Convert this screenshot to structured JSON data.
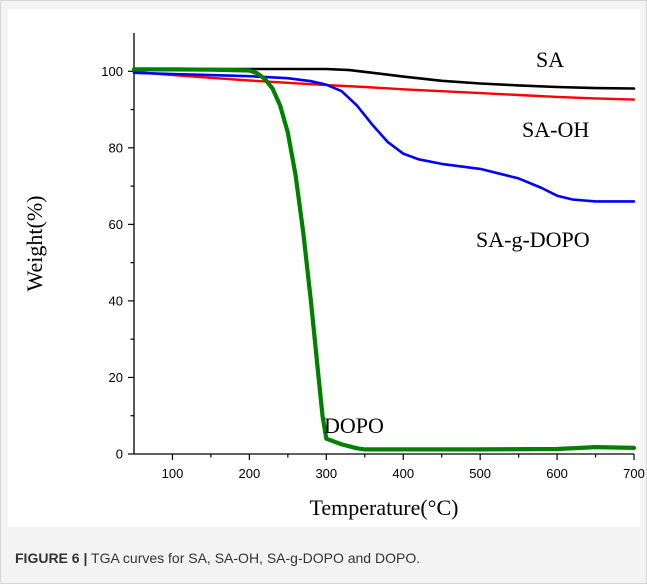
{
  "caption": {
    "label": "FIGURE 6 |",
    "text": " TGA curves for SA, SA-OH, SA-g-DOPO and DOPO."
  },
  "chart_data": {
    "type": "line",
    "title": "",
    "xlabel": "Temperature(°C)",
    "ylabel": "Weight(%)",
    "xlim": [
      50,
      700
    ],
    "ylim": [
      0,
      110
    ],
    "xticks": [
      100,
      200,
      300,
      400,
      500,
      600,
      700
    ],
    "yticks": [
      0,
      20,
      40,
      60,
      80,
      100
    ],
    "grid": false,
    "legend": "none (series labelled directly on the plot)",
    "series": [
      {
        "name": "SA",
        "color": "#000000",
        "x": [
          50,
          100,
          150,
          200,
          250,
          300,
          330,
          360,
          400,
          450,
          500,
          550,
          600,
          650,
          700
        ],
        "y": [
          100.5,
          100.6,
          100.6,
          100.6,
          100.6,
          100.6,
          100.3,
          99.6,
          98.6,
          97.5,
          96.8,
          96.3,
          95.9,
          95.6,
          95.5
        ]
      },
      {
        "name": "SA-OH",
        "color": "#ff0000",
        "x": [
          50,
          100,
          150,
          200,
          250,
          300,
          350,
          400,
          450,
          500,
          550,
          600,
          650,
          700
        ],
        "y": [
          99.8,
          99.0,
          98.3,
          97.6,
          97.0,
          96.4,
          95.9,
          95.3,
          94.8,
          94.3,
          93.8,
          93.3,
          92.9,
          92.6
        ]
      },
      {
        "name": "SA-g-DOPO",
        "color": "#0000ff",
        "x": [
          50,
          100,
          150,
          200,
          250,
          280,
          300,
          320,
          340,
          360,
          380,
          400,
          420,
          450,
          500,
          550,
          580,
          600,
          620,
          650,
          680,
          700
        ],
        "y": [
          99.6,
          99.3,
          99.0,
          98.7,
          98.2,
          97.4,
          96.5,
          94.8,
          91.0,
          86.0,
          81.5,
          78.5,
          77.0,
          75.8,
          74.5,
          72.0,
          69.5,
          67.5,
          66.5,
          66.0,
          66.0,
          66.0
        ]
      },
      {
        "name": "DOPO",
        "color": "#008000",
        "x": [
          50,
          100,
          150,
          200,
          210,
          220,
          230,
          240,
          250,
          260,
          270,
          280,
          290,
          295,
          300,
          320,
          340,
          350,
          400,
          500,
          600,
          650,
          700
        ],
        "y": [
          100.5,
          100.5,
          100.4,
          100.2,
          99.5,
          98.0,
          95.5,
          91.0,
          84.0,
          73.0,
          58.0,
          40.0,
          20.0,
          10.0,
          4.0,
          2.5,
          1.5,
          1.2,
          1.2,
          1.2,
          1.3,
          1.8,
          1.6
        ]
      }
    ]
  }
}
